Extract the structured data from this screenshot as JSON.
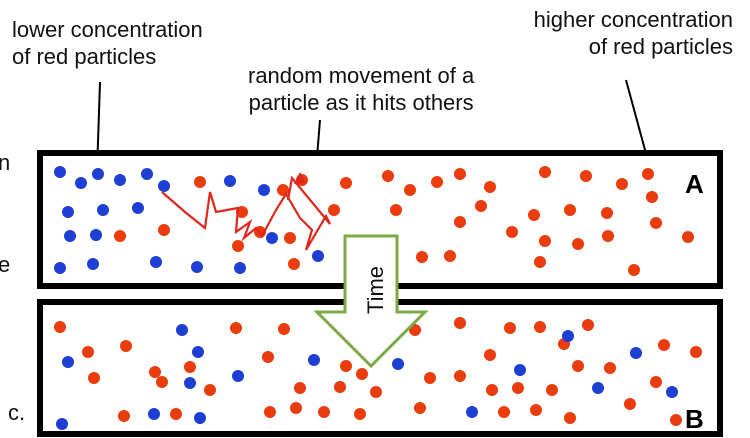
{
  "labels": {
    "lower": [
      "lower concentration",
      "of red particles"
    ],
    "random": [
      "random movement of a",
      "particle as it hits others"
    ],
    "higher": [
      "higher concentration",
      "of red particles"
    ],
    "time": "Time",
    "panel_a": "A",
    "panel_b": "B",
    "edge_fragments": [
      "n",
      "e",
      "c."
    ]
  },
  "colors": {
    "red_particle": "#ea3c0c",
    "blue_particle": "#1e3fd4",
    "path": "#e0261c",
    "arrow": "#7caa44",
    "border": "#000000"
  }
}
